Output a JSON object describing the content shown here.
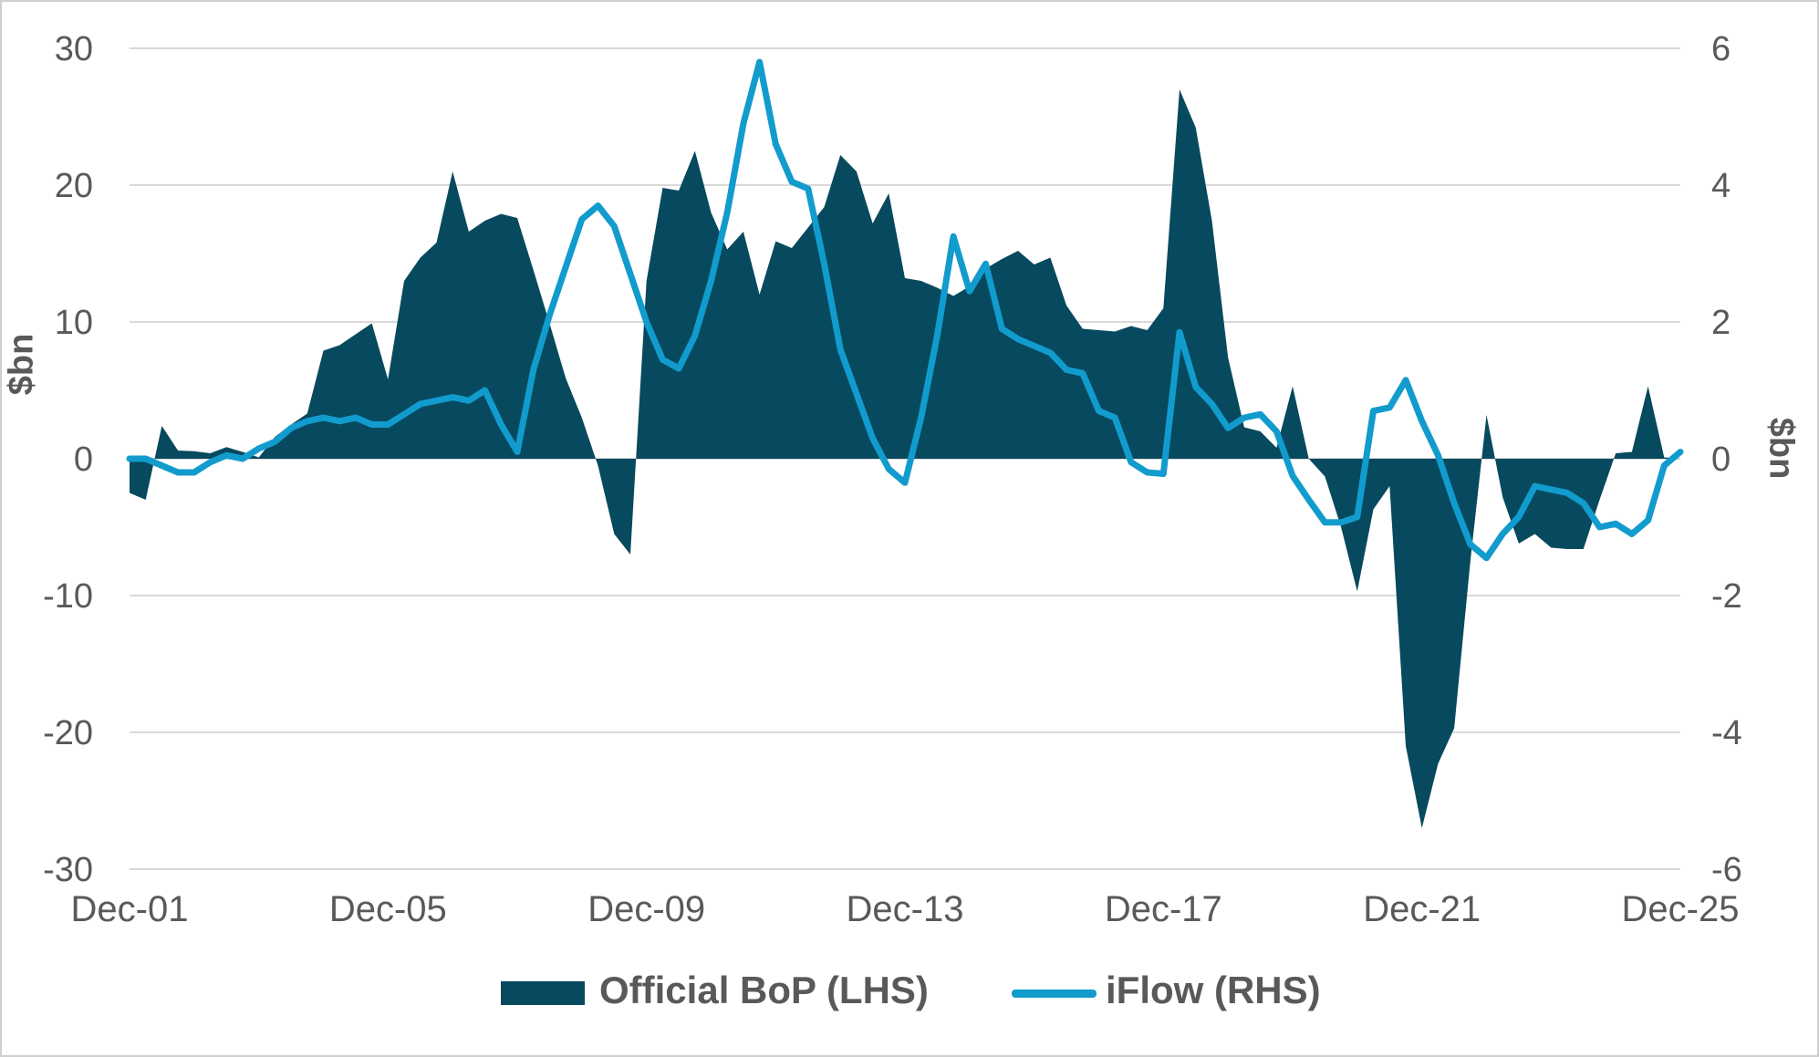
{
  "chart_data": {
    "type": "combo-area-line",
    "frequency": "quarterly",
    "x_start": "Dec-01",
    "x_end": "Dec-25",
    "x_tick_labels": [
      "Dec-01",
      "Dec-05",
      "Dec-09",
      "Dec-13",
      "Dec-17",
      "Dec-21",
      "Dec-25"
    ],
    "grid": "horizontal",
    "legend_position": "bottom",
    "left_axis": {
      "label": "$bn",
      "range": [
        -30,
        30
      ],
      "ticks": [
        30,
        20,
        10,
        0,
        -10,
        -20,
        -30
      ]
    },
    "right_axis": {
      "label": "$bn",
      "range": [
        -6,
        6
      ],
      "ticks": [
        6,
        4,
        2,
        0,
        -2,
        -4,
        -6
      ]
    },
    "series": [
      {
        "name": "Official BoP (LHS)",
        "type": "area",
        "axis": "left",
        "color": "#07495F",
        "values": [
          -2.5,
          -3.0,
          2.4,
          0.6,
          0.55,
          0.4,
          0.85,
          0.5,
          0.1,
          1.6,
          2.5,
          3.3,
          7.9,
          8.3,
          9.1,
          9.9,
          5.8,
          13.0,
          14.7,
          15.8,
          21.0,
          16.6,
          17.4,
          17.9,
          17.6,
          13.8,
          9.9,
          5.9,
          3.0,
          -0.5,
          -5.5,
          -7.0,
          13.0,
          19.8,
          19.6,
          22.5,
          18.0,
          15.3,
          16.6,
          12.0,
          15.9,
          15.4,
          16.9,
          18.4,
          22.2,
          21.0,
          17.2,
          19.4,
          13.2,
          13.0,
          12.5,
          11.9,
          12.6,
          13.9,
          14.6,
          15.2,
          14.2,
          14.7,
          11.2,
          9.5,
          9.4,
          9.3,
          9.7,
          9.4,
          11.0,
          27.0,
          24.2,
          17.4,
          7.4,
          2.3,
          2.0,
          0.8,
          5.3,
          0.0,
          -1.3,
          -5.0,
          -9.7,
          -3.7,
          -2.0,
          -21.0,
          -27.0,
          -22.3,
          -19.7,
          -7.5,
          3.2,
          -2.8,
          -6.2,
          -5.5,
          -6.5,
          -6.6,
          -6.6,
          -3.0,
          0.4,
          0.5,
          5.3,
          0.1,
          0.0
        ]
      },
      {
        "name": "iFlow (RHS)",
        "type": "line",
        "axis": "right",
        "color": "#129BCD",
        "values": [
          0.0,
          0.0,
          -0.1,
          -0.2,
          -0.2,
          -0.05,
          0.05,
          0.0,
          0.15,
          0.25,
          0.45,
          0.55,
          0.6,
          0.55,
          0.6,
          0.5,
          0.5,
          0.65,
          0.8,
          0.85,
          0.9,
          0.85,
          1.0,
          0.5,
          0.1,
          1.3,
          2.1,
          2.8,
          3.5,
          3.7,
          3.4,
          2.7,
          2.0,
          1.45,
          1.32,
          1.8,
          2.6,
          3.6,
          4.9,
          5.8,
          4.6,
          4.05,
          3.95,
          2.85,
          1.6,
          0.95,
          0.3,
          -0.15,
          -0.35,
          0.6,
          1.8,
          3.25,
          2.45,
          2.85,
          1.9,
          1.75,
          1.65,
          1.55,
          1.3,
          1.25,
          0.7,
          0.6,
          -0.05,
          -0.2,
          -0.22,
          1.85,
          1.05,
          0.8,
          0.45,
          0.6,
          0.65,
          0.4,
          -0.25,
          -0.6,
          -0.93,
          -0.93,
          -0.85,
          0.7,
          0.75,
          1.15,
          0.55,
          0.05,
          -0.65,
          -1.25,
          -1.45,
          -1.1,
          -0.85,
          -0.4,
          -0.45,
          -0.5,
          -0.65,
          -1.0,
          -0.95,
          -1.1,
          -0.9,
          -0.1,
          0.1
        ]
      }
    ]
  },
  "axes": {
    "left_title": "$bn",
    "right_title": "$bn"
  },
  "legend": {
    "area_label": "Official BoP (LHS)",
    "line_label": "iFlow (RHS)"
  },
  "colors": {
    "area_fill": "#07495F",
    "line_stroke": "#129BCD",
    "gridline": "#d9d9d9",
    "text": "#595959",
    "frame_border": "#d0cece",
    "background": "#ffffff"
  }
}
